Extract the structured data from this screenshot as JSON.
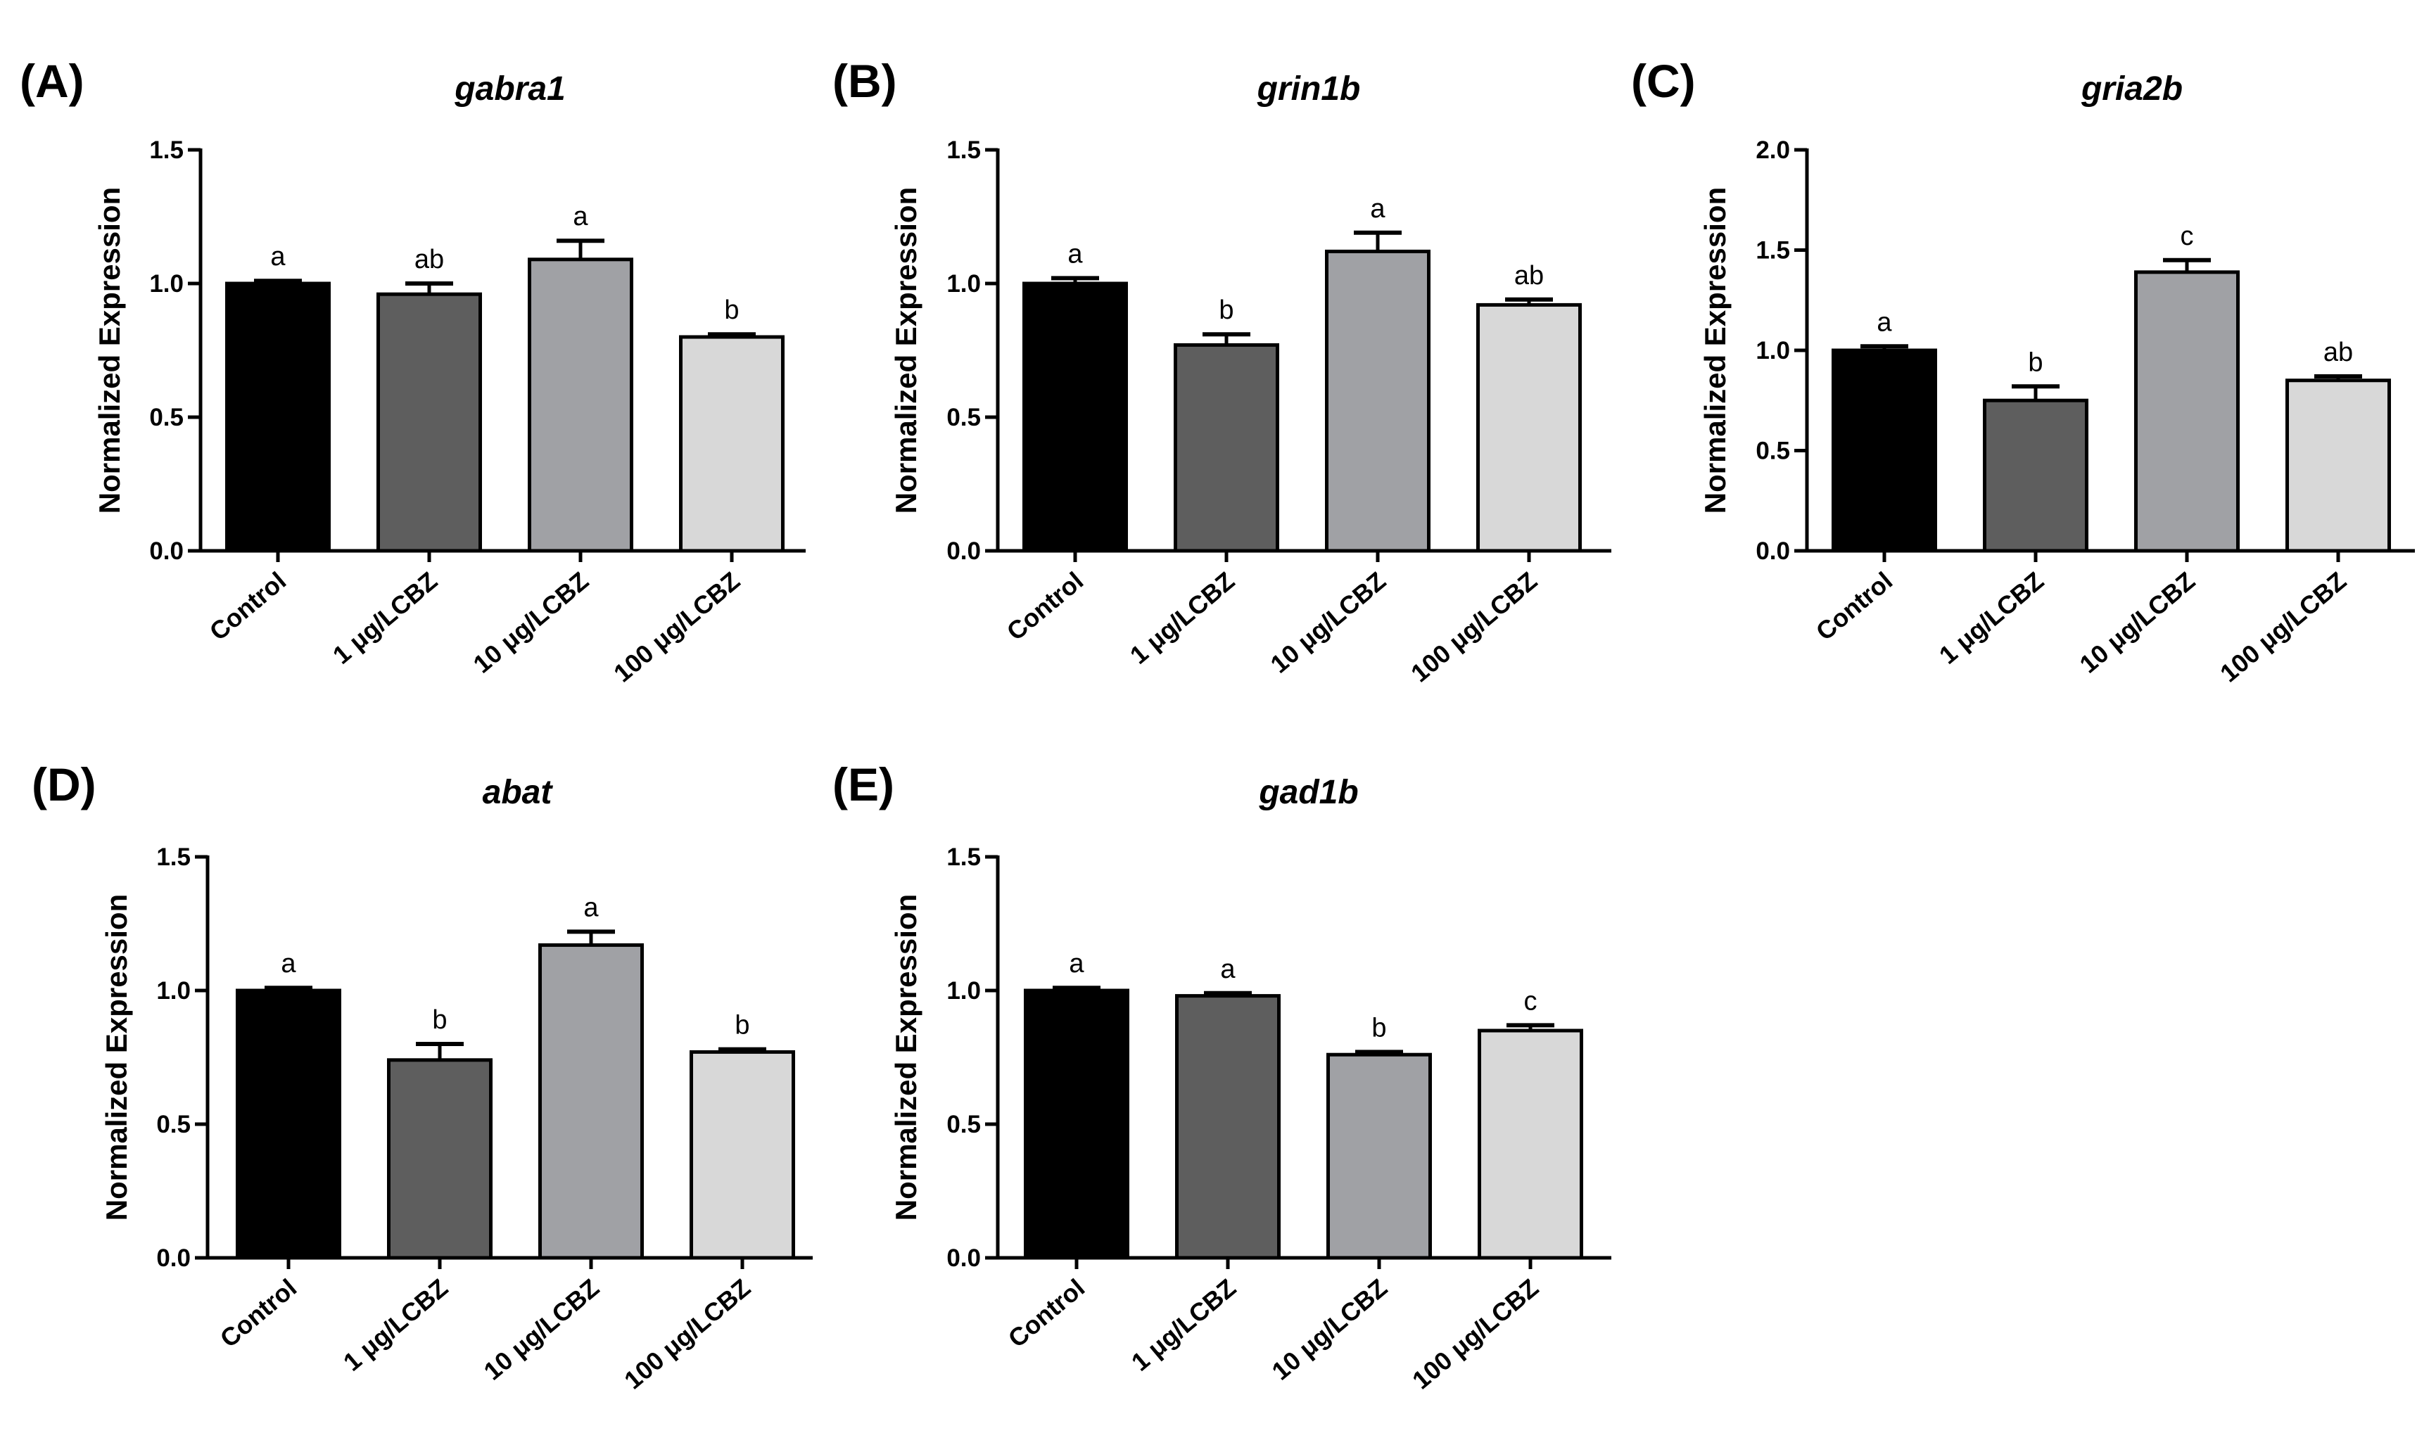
{
  "figure": {
    "ylabel": "Normalized Expression",
    "categories": [
      "Control",
      "1 μg/LCBZ",
      "10 μg/LCBZ",
      "100 μg/LCBZ"
    ],
    "bar_colors": [
      "#000000",
      "#5e5e5e",
      "#a0a1a5",
      "#d8d8d8"
    ],
    "axis_color": "#000000"
  },
  "chart_data": [
    {
      "panel": "(A)",
      "type": "bar",
      "title": "gabra1",
      "ylabel": "Normalized Expression",
      "categories": [
        "Control",
        "1 μg/LCBZ",
        "10 μg/LCBZ",
        "100 μg/LCBZ"
      ],
      "values": [
        1.0,
        0.96,
        1.09,
        0.8
      ],
      "errors": [
        0.01,
        0.04,
        0.07,
        0.01
      ],
      "significance": [
        "a",
        "ab",
        "a",
        "b"
      ],
      "ylim": [
        0,
        1.5
      ],
      "yticks": [
        "0.0",
        "0.5",
        "1.0",
        "1.5"
      ]
    },
    {
      "panel": "(B)",
      "type": "bar",
      "title": "grin1b",
      "ylabel": "Normalized Expression",
      "categories": [
        "Control",
        "1 μg/LCBZ",
        "10 μg/LCBZ",
        "100 μg/LCBZ"
      ],
      "values": [
        1.0,
        0.77,
        1.12,
        0.92
      ],
      "errors": [
        0.02,
        0.04,
        0.07,
        0.02
      ],
      "significance": [
        "a",
        "b",
        "a",
        "ab"
      ],
      "ylim": [
        0,
        1.5
      ],
      "yticks": [
        "0.0",
        "0.5",
        "1.0",
        "1.5"
      ]
    },
    {
      "panel": "(C)",
      "type": "bar",
      "title": "gria2b",
      "ylabel": "Normalized Expression",
      "categories": [
        "Control",
        "1 μg/LCBZ",
        "10 μg/LCBZ",
        "100 μg/LCBZ"
      ],
      "values": [
        1.0,
        0.75,
        1.39,
        0.85
      ],
      "errors": [
        0.02,
        0.07,
        0.06,
        0.02
      ],
      "significance": [
        "a",
        "b",
        "c",
        "ab"
      ],
      "ylim": [
        0,
        2.0
      ],
      "yticks": [
        "0.0",
        "0.5",
        "1.0",
        "1.5",
        "2.0"
      ]
    },
    {
      "panel": "(D)",
      "type": "bar",
      "title": "abat",
      "ylabel": "Normalized Expression",
      "categories": [
        "Control",
        "1 μg/LCBZ",
        "10 μg/LCBZ",
        "100 μg/LCBZ"
      ],
      "values": [
        1.0,
        0.74,
        1.17,
        0.77
      ],
      "errors": [
        0.01,
        0.06,
        0.05,
        0.01
      ],
      "significance": [
        "a",
        "b",
        "a",
        "b"
      ],
      "ylim": [
        0,
        1.5
      ],
      "yticks": [
        "0.0",
        "0.5",
        "1.0",
        "1.5"
      ]
    },
    {
      "panel": "(E)",
      "type": "bar",
      "title": "gad1b",
      "ylabel": "Normalized Expression",
      "categories": [
        "Control",
        "1 μg/LCBZ",
        "10 μg/LCBZ",
        "100 μg/LCBZ"
      ],
      "values": [
        1.0,
        0.98,
        0.76,
        0.85
      ],
      "errors": [
        0.01,
        0.01,
        0.01,
        0.02
      ],
      "significance": [
        "a",
        "a",
        "b",
        "c"
      ],
      "ylim": [
        0,
        1.5
      ],
      "yticks": [
        "0.0",
        "0.5",
        "1.0",
        "1.5"
      ]
    }
  ]
}
